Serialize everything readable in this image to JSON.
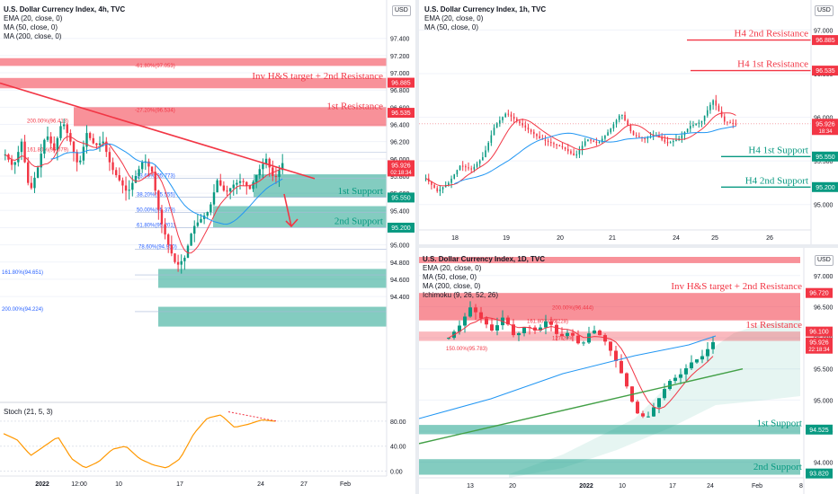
{
  "charts": {
    "h4": {
      "title": "U.S. Dollar Currency Index, 4h, TVC",
      "indicators": [
        "EMA (20, close, 0)",
        "MA (50, close, 0)",
        "MA (200, close, 0)"
      ],
      "currency": "USD",
      "ylim": [
        93.2,
        97.7
      ],
      "yticks": [
        "97.400",
        "97.200",
        "97.000",
        "96.800",
        "96.600",
        "96.400",
        "96.200",
        "96.000",
        "95.800",
        "95.600",
        "95.400",
        "95.200",
        "95.000",
        "94.800",
        "94.600",
        "94.400"
      ],
      "xticks": [
        "2022",
        "12:00",
        "10",
        "17",
        "24",
        "27",
        "Feb"
      ],
      "annotations": [
        {
          "text": "Inv H&S target + 2nd Resistance",
          "value": 96.885,
          "color": "#f23645"
        },
        {
          "text": "1st Resistance",
          "value": 96.535,
          "color": "#f23645"
        },
        {
          "text": "1st Support",
          "value": 95.55,
          "color": "#089981"
        },
        {
          "text": "2nd Support",
          "value": 95.2,
          "color": "#089981"
        }
      ],
      "fib_labels": [
        "-61.80%(97.053)",
        "-27.20%(96.534)",
        "200.00%(96.413)",
        "161.80%(96.079)",
        "23.60%(95.773)",
        "38.20%(95.555)",
        "50.00%(95.378)",
        "61.80%(95.201)",
        "78.60%(94.950)",
        "161.80%(94.651)",
        "200.00%(94.224)"
      ],
      "price_tags": [
        {
          "text": "96.885",
          "bg": "#f23645"
        },
        {
          "text": "96.535",
          "bg": "#f23645"
        },
        {
          "text": "95.926",
          "sub": "02:18:34",
          "bg": "#f23645"
        },
        {
          "text": "95.550",
          "bg": "#089981"
        },
        {
          "text": "95.200",
          "bg": "#089981"
        }
      ]
    },
    "stoch": {
      "title": "Stoch (21, 5, 3)",
      "yticks": [
        "80.00",
        "40.00",
        "0.00"
      ],
      "ylim": [
        -5,
        100
      ],
      "x": [
        0,
        4,
        8,
        12,
        16,
        20,
        24,
        28,
        32,
        36,
        40,
        44,
        48,
        52,
        56,
        60,
        64,
        68,
        72,
        76,
        80
      ],
      "values": [
        60,
        50,
        25,
        40,
        55,
        20,
        5,
        15,
        35,
        40,
        20,
        10,
        5,
        20,
        60,
        85,
        90,
        70,
        75,
        82,
        80
      ]
    },
    "h1": {
      "title": "U.S. Dollar Currency Index, 1h, TVC",
      "indicators": [
        "EMA (20, close, 0)",
        "MA (50, close, 0)"
      ],
      "currency": "USD",
      "ylim": [
        94.75,
        97.2
      ],
      "yticks": [
        "97.000",
        "96.500",
        "96.000",
        "95.500",
        "95.000"
      ],
      "xticks": [
        "18",
        "19",
        "20",
        "21",
        "24",
        "25",
        "26"
      ],
      "annotations": [
        {
          "text": "H4 2nd Resistance",
          "value": 96.885,
          "color": "#f23645"
        },
        {
          "text": "H4 1st Resistance",
          "value": 96.535,
          "color": "#f23645"
        },
        {
          "text": "H4 1st Support",
          "value": 95.55,
          "color": "#089981"
        },
        {
          "text": "H4 2nd Support",
          "value": 95.2,
          "color": "#089981"
        }
      ],
      "price_tags": [
        {
          "text": "96.885",
          "bg": "#f23645"
        },
        {
          "text": "96.535",
          "bg": "#f23645"
        },
        {
          "text": "95.926",
          "sub": "18:34",
          "bg": "#f23645"
        },
        {
          "text": "95.550",
          "bg": "#089981"
        },
        {
          "text": "95.200",
          "bg": "#089981"
        }
      ]
    },
    "d1": {
      "title": "U.S. Dollar Currency Index, 1D, TVC",
      "indicators": [
        "EMA (20, close, 0)",
        "MA (50, close, 0)",
        "MA (200, close, 0)",
        "Ichimoku (9, 26, 52, 26)"
      ],
      "currency": "USD",
      "ylim": [
        93.75,
        97.3
      ],
      "yticks": [
        "97.000",
        "96.500",
        "96.000",
        "95.500",
        "95.000",
        "94.500",
        "94.000"
      ],
      "xticks": [
        "13",
        "20",
        "2022",
        "10",
        "17",
        "24",
        "Feb",
        "8"
      ],
      "annotations": [
        {
          "text": "Inv H&S target + 2nd Resistance",
          "value": 96.72,
          "color": "#f23645"
        },
        {
          "text": "1st Resistance",
          "value": 96.1,
          "color": "#f23645"
        },
        {
          "text": "1st Support",
          "value": 94.525,
          "color": "#089981"
        },
        {
          "text": "2nd Support",
          "value": 93.82,
          "color": "#089981"
        }
      ],
      "fib_labels": [
        "200.00%(96.444)",
        "161.80%(96.228)",
        "150.00%(95.783)",
        "127.20%"
      ],
      "price_tags": [
        {
          "text": "96.720",
          "bg": "#f23645"
        },
        {
          "text": "96.100",
          "bg": "#f23645"
        },
        {
          "text": "95.926",
          "sub": "22:18:34",
          "bg": "#f23645"
        },
        {
          "text": "94.525",
          "bg": "#089981"
        },
        {
          "text": "93.820",
          "bg": "#089981"
        }
      ]
    }
  },
  "colors": {
    "up": "#089981",
    "down": "#f23645",
    "ema": "#f23645",
    "ma50": "#2196f3",
    "resistance_zone": "rgba(242,54,69,0.55)",
    "support_zone": "rgba(8,153,129,0.5)",
    "trend": "#f23645"
  }
}
